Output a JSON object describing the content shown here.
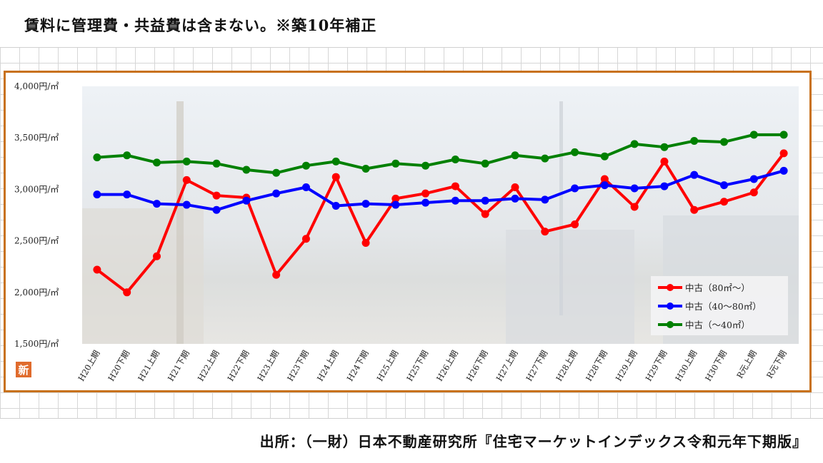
{
  "header": {
    "note": "賃料に管理費・共益費は含まない。※築10年補正"
  },
  "footer": {
    "source": "出所：（一財）日本不動産研究所『住宅マーケットインデックス令和元年下期版』"
  },
  "badge": {
    "label": "新"
  },
  "colors": {
    "frame": "#c8711a",
    "series_large": "#ff0000",
    "series_medium": "#0000ff",
    "series_small": "#008000"
  },
  "chart_data": {
    "type": "line",
    "title": "",
    "xlabel": "",
    "ylabel": "",
    "ylim": [
      1500,
      4000
    ],
    "yticks": [
      1500,
      2000,
      2500,
      3000,
      3500,
      4000
    ],
    "ytick_labels": [
      "1,500円/㎡",
      "2,000円/㎡",
      "2,500円/㎡",
      "3,000円/㎡",
      "3,500円/㎡",
      "4,000円/㎡"
    ],
    "grid": false,
    "legend": "bottom-right",
    "categories": [
      "H20上期",
      "H20下期",
      "H21上期",
      "H21下期",
      "H22上期",
      "H22下期",
      "H23上期",
      "H23下期",
      "H24上期",
      "H24下期",
      "H25上期",
      "H25下期",
      "H26上期",
      "H26下期",
      "H27上期",
      "H27下期",
      "H28上期",
      "H28下期",
      "H29上期",
      "H29下期",
      "H30上期",
      "H30下期",
      "R元上期",
      "R元下期"
    ],
    "series": [
      {
        "name": "中古（80㎡～）",
        "color": "#ff0000",
        "values": [
          2220,
          2000,
          2350,
          3090,
          2940,
          2920,
          2170,
          2520,
          3120,
          2480,
          2910,
          2960,
          3030,
          2760,
          3020,
          2590,
          2660,
          3100,
          2830,
          3270,
          2800,
          2880,
          2970,
          3350
        ]
      },
      {
        "name": "中古（40～80㎡）",
        "color": "#0000ff",
        "values": [
          2950,
          2950,
          2860,
          2850,
          2800,
          2890,
          2960,
          3020,
          2840,
          2860,
          2850,
          2870,
          2890,
          2890,
          2910,
          2900,
          3010,
          3040,
          3010,
          3030,
          3140,
          3040,
          3100,
          3180
        ]
      },
      {
        "name": "中古（～40㎡）",
        "color": "#008000",
        "values": [
          3310,
          3330,
          3260,
          3270,
          3250,
          3190,
          3160,
          3230,
          3270,
          3200,
          3250,
          3230,
          3290,
          3250,
          3330,
          3300,
          3360,
          3320,
          3440,
          3410,
          3470,
          3460,
          3530,
          3530
        ]
      }
    ]
  }
}
